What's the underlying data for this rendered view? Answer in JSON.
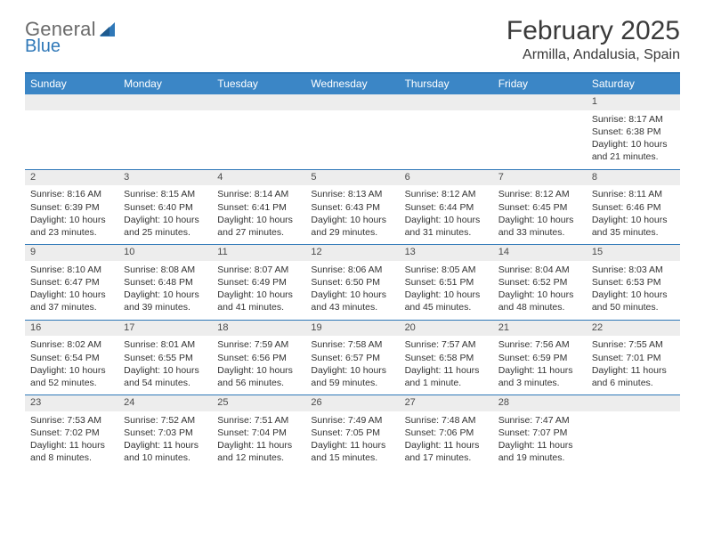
{
  "brand": {
    "word1": "General",
    "word2": "Blue",
    "accent_color": "#2f78b8",
    "gray_color": "#6b6b6b"
  },
  "title": "February 2025",
  "location": "Armilla, Andalusia, Spain",
  "colors": {
    "header_bg": "#3b86c6",
    "border": "#2f78b8",
    "daynum_bg": "#ededed",
    "text": "#333333"
  },
  "fonts": {
    "title_pt": 30,
    "location_pt": 16,
    "weekday_pt": 12,
    "cell_pt": 10.5
  },
  "weekdays": [
    "Sunday",
    "Monday",
    "Tuesday",
    "Wednesday",
    "Thursday",
    "Friday",
    "Saturday"
  ],
  "weeks": [
    [
      {
        "n": "",
        "sunrise": "",
        "sunset": "",
        "daylight": ""
      },
      {
        "n": "",
        "sunrise": "",
        "sunset": "",
        "daylight": ""
      },
      {
        "n": "",
        "sunrise": "",
        "sunset": "",
        "daylight": ""
      },
      {
        "n": "",
        "sunrise": "",
        "sunset": "",
        "daylight": ""
      },
      {
        "n": "",
        "sunrise": "",
        "sunset": "",
        "daylight": ""
      },
      {
        "n": "",
        "sunrise": "",
        "sunset": "",
        "daylight": ""
      },
      {
        "n": "1",
        "sunrise": "Sunrise: 8:17 AM",
        "sunset": "Sunset: 6:38 PM",
        "daylight": "Daylight: 10 hours and 21 minutes."
      }
    ],
    [
      {
        "n": "2",
        "sunrise": "Sunrise: 8:16 AM",
        "sunset": "Sunset: 6:39 PM",
        "daylight": "Daylight: 10 hours and 23 minutes."
      },
      {
        "n": "3",
        "sunrise": "Sunrise: 8:15 AM",
        "sunset": "Sunset: 6:40 PM",
        "daylight": "Daylight: 10 hours and 25 minutes."
      },
      {
        "n": "4",
        "sunrise": "Sunrise: 8:14 AM",
        "sunset": "Sunset: 6:41 PM",
        "daylight": "Daylight: 10 hours and 27 minutes."
      },
      {
        "n": "5",
        "sunrise": "Sunrise: 8:13 AM",
        "sunset": "Sunset: 6:43 PM",
        "daylight": "Daylight: 10 hours and 29 minutes."
      },
      {
        "n": "6",
        "sunrise": "Sunrise: 8:12 AM",
        "sunset": "Sunset: 6:44 PM",
        "daylight": "Daylight: 10 hours and 31 minutes."
      },
      {
        "n": "7",
        "sunrise": "Sunrise: 8:12 AM",
        "sunset": "Sunset: 6:45 PM",
        "daylight": "Daylight: 10 hours and 33 minutes."
      },
      {
        "n": "8",
        "sunrise": "Sunrise: 8:11 AM",
        "sunset": "Sunset: 6:46 PM",
        "daylight": "Daylight: 10 hours and 35 minutes."
      }
    ],
    [
      {
        "n": "9",
        "sunrise": "Sunrise: 8:10 AM",
        "sunset": "Sunset: 6:47 PM",
        "daylight": "Daylight: 10 hours and 37 minutes."
      },
      {
        "n": "10",
        "sunrise": "Sunrise: 8:08 AM",
        "sunset": "Sunset: 6:48 PM",
        "daylight": "Daylight: 10 hours and 39 minutes."
      },
      {
        "n": "11",
        "sunrise": "Sunrise: 8:07 AM",
        "sunset": "Sunset: 6:49 PM",
        "daylight": "Daylight: 10 hours and 41 minutes."
      },
      {
        "n": "12",
        "sunrise": "Sunrise: 8:06 AM",
        "sunset": "Sunset: 6:50 PM",
        "daylight": "Daylight: 10 hours and 43 minutes."
      },
      {
        "n": "13",
        "sunrise": "Sunrise: 8:05 AM",
        "sunset": "Sunset: 6:51 PM",
        "daylight": "Daylight: 10 hours and 45 minutes."
      },
      {
        "n": "14",
        "sunrise": "Sunrise: 8:04 AM",
        "sunset": "Sunset: 6:52 PM",
        "daylight": "Daylight: 10 hours and 48 minutes."
      },
      {
        "n": "15",
        "sunrise": "Sunrise: 8:03 AM",
        "sunset": "Sunset: 6:53 PM",
        "daylight": "Daylight: 10 hours and 50 minutes."
      }
    ],
    [
      {
        "n": "16",
        "sunrise": "Sunrise: 8:02 AM",
        "sunset": "Sunset: 6:54 PM",
        "daylight": "Daylight: 10 hours and 52 minutes."
      },
      {
        "n": "17",
        "sunrise": "Sunrise: 8:01 AM",
        "sunset": "Sunset: 6:55 PM",
        "daylight": "Daylight: 10 hours and 54 minutes."
      },
      {
        "n": "18",
        "sunrise": "Sunrise: 7:59 AM",
        "sunset": "Sunset: 6:56 PM",
        "daylight": "Daylight: 10 hours and 56 minutes."
      },
      {
        "n": "19",
        "sunrise": "Sunrise: 7:58 AM",
        "sunset": "Sunset: 6:57 PM",
        "daylight": "Daylight: 10 hours and 59 minutes."
      },
      {
        "n": "20",
        "sunrise": "Sunrise: 7:57 AM",
        "sunset": "Sunset: 6:58 PM",
        "daylight": "Daylight: 11 hours and 1 minute."
      },
      {
        "n": "21",
        "sunrise": "Sunrise: 7:56 AM",
        "sunset": "Sunset: 6:59 PM",
        "daylight": "Daylight: 11 hours and 3 minutes."
      },
      {
        "n": "22",
        "sunrise": "Sunrise: 7:55 AM",
        "sunset": "Sunset: 7:01 PM",
        "daylight": "Daylight: 11 hours and 6 minutes."
      }
    ],
    [
      {
        "n": "23",
        "sunrise": "Sunrise: 7:53 AM",
        "sunset": "Sunset: 7:02 PM",
        "daylight": "Daylight: 11 hours and 8 minutes."
      },
      {
        "n": "24",
        "sunrise": "Sunrise: 7:52 AM",
        "sunset": "Sunset: 7:03 PM",
        "daylight": "Daylight: 11 hours and 10 minutes."
      },
      {
        "n": "25",
        "sunrise": "Sunrise: 7:51 AM",
        "sunset": "Sunset: 7:04 PM",
        "daylight": "Daylight: 11 hours and 12 minutes."
      },
      {
        "n": "26",
        "sunrise": "Sunrise: 7:49 AM",
        "sunset": "Sunset: 7:05 PM",
        "daylight": "Daylight: 11 hours and 15 minutes."
      },
      {
        "n": "27",
        "sunrise": "Sunrise: 7:48 AM",
        "sunset": "Sunset: 7:06 PM",
        "daylight": "Daylight: 11 hours and 17 minutes."
      },
      {
        "n": "28",
        "sunrise": "Sunrise: 7:47 AM",
        "sunset": "Sunset: 7:07 PM",
        "daylight": "Daylight: 11 hours and 19 minutes."
      },
      {
        "n": "",
        "sunrise": "",
        "sunset": "",
        "daylight": ""
      }
    ]
  ]
}
